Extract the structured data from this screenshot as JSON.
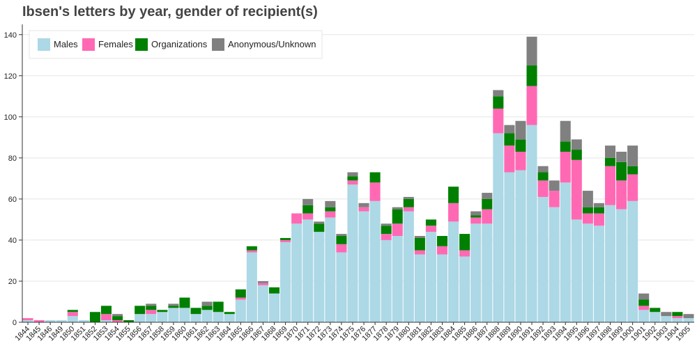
{
  "chart_data": {
    "type": "bar",
    "stacked": true,
    "title": "Ibsen's letters by year, gender of recipient(s)",
    "xlabel": "",
    "ylabel": "",
    "ylim": [
      0,
      145
    ],
    "yticks": [
      0,
      20,
      40,
      60,
      80,
      100,
      120,
      140
    ],
    "grid": true,
    "legend_position": "top-left",
    "categories": [
      "1844",
      "1845",
      "1846",
      "1849",
      "1850",
      "1851",
      "1852",
      "1853",
      "1854",
      "1855",
      "1856",
      "1857",
      "1858",
      "1859",
      "1860",
      "1861",
      "1862",
      "1863",
      "1864",
      "1865",
      "1866",
      "1867",
      "1868",
      "1869",
      "1870",
      "1871",
      "1872",
      "1873",
      "1874",
      "1875",
      "1876",
      "1877",
      "1878",
      "1879",
      "1880",
      "1881",
      "1882",
      "1883",
      "1884",
      "1885",
      "1886",
      "1887",
      "1888",
      "1889",
      "1890",
      "1891",
      "1892",
      "1893",
      "1894",
      "1895",
      "1896",
      "1897",
      "1898",
      "1899",
      "1900",
      "1901",
      "1902",
      "1903",
      "1904",
      "1905"
    ],
    "series": [
      {
        "name": "Males",
        "color": "#add8e6",
        "values": [
          1,
          0,
          1,
          1,
          3,
          1,
          0,
          1,
          0,
          0,
          4,
          4,
          5,
          7,
          7,
          4,
          6,
          5,
          4,
          11,
          34,
          18,
          14,
          39,
          48,
          50,
          44,
          51,
          34,
          67,
          54,
          59,
          40,
          42,
          54,
          33,
          44,
          33,
          49,
          32,
          48,
          48,
          92,
          73,
          74,
          96,
          61,
          56,
          68,
          50,
          48,
          47,
          57,
          55,
          59,
          6,
          5,
          3,
          2,
          2
        ]
      },
      {
        "name": "Females",
        "color": "#ff69b4",
        "values": [
          1,
          1,
          0,
          0,
          2,
          0,
          0,
          3,
          1,
          0,
          0,
          2,
          0,
          0,
          0,
          0,
          0,
          0,
          0,
          1,
          1,
          1,
          0,
          1,
          5,
          3,
          0,
          3,
          4,
          2,
          2,
          9,
          3,
          6,
          2,
          2,
          3,
          4,
          9,
          3,
          3,
          7,
          12,
          13,
          9,
          19,
          8,
          8,
          15,
          29,
          5,
          6,
          19,
          14,
          13,
          2,
          0,
          0,
          1,
          0
        ]
      },
      {
        "name": "Organizations",
        "color": "#008000",
        "values": [
          0,
          0,
          0,
          0,
          1,
          0,
          5,
          4,
          2,
          1,
          4,
          2,
          1,
          1,
          5,
          3,
          2,
          5,
          1,
          4,
          2,
          0,
          3,
          1,
          0,
          4,
          4,
          2,
          4,
          2,
          0,
          5,
          4,
          7,
          4,
          6,
          3,
          5,
          8,
          8,
          1,
          5,
          6,
          6,
          6,
          10,
          4,
          0,
          5,
          5,
          3,
          3,
          4,
          9,
          4,
          3,
          2,
          0,
          2,
          0
        ]
      },
      {
        "name": "Anonymous/Unknown",
        "color": "#808080",
        "values": [
          0,
          0,
          0,
          0,
          0,
          0,
          0,
          0,
          1,
          0,
          0,
          1,
          0,
          1,
          0,
          0,
          2,
          0,
          0,
          0,
          0,
          1,
          0,
          0,
          0,
          3,
          1,
          3,
          1,
          2,
          2,
          0,
          1,
          1,
          1,
          1,
          0,
          0,
          0,
          0,
          2,
          3,
          3,
          4,
          9,
          14,
          3,
          5,
          10,
          5,
          8,
          2,
          6,
          5,
          10,
          3,
          0,
          2,
          0,
          2
        ]
      }
    ]
  }
}
